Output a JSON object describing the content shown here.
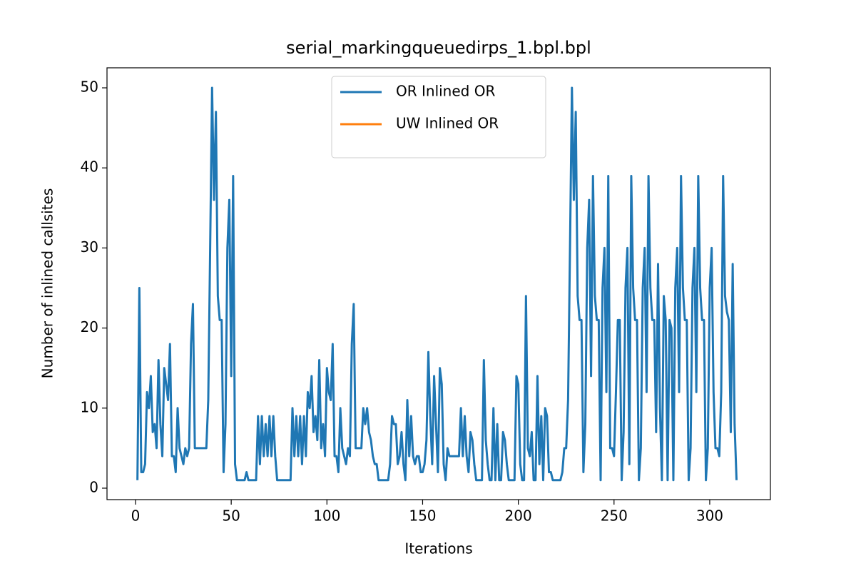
{
  "chart_data": {
    "type": "line",
    "title": "serial_markingqueuedirps_1.bpl.bpl",
    "xlabel": "Iterations",
    "ylabel": "Number of inlined callsites",
    "xlim": [
      -14.9,
      331.7
    ],
    "ylim": [
      -1.43,
      52.5
    ],
    "xticks": [
      0,
      50,
      100,
      150,
      200,
      250,
      300
    ],
    "yticks": [
      0,
      10,
      20,
      30,
      40,
      50
    ],
    "legend": "upper center",
    "series": [
      {
        "name": "OR Inlined OR",
        "color": "#1f77b4",
        "x": [
          1,
          2,
          3,
          4,
          5,
          6,
          7,
          8,
          9,
          10,
          11,
          12,
          13,
          14,
          15,
          16,
          17,
          18,
          19,
          20,
          21,
          22,
          23,
          24,
          25,
          26,
          27,
          28,
          29,
          30,
          31,
          32,
          33,
          34,
          35,
          36,
          37,
          38,
          39,
          40,
          41,
          42,
          43,
          44,
          45,
          46,
          47,
          48,
          49,
          50,
          51,
          52,
          53,
          54,
          55,
          56,
          57,
          58,
          59,
          60,
          61,
          62,
          63,
          64,
          65,
          66,
          67,
          68,
          69,
          70,
          71,
          72,
          73,
          74,
          75,
          76,
          77,
          78,
          79,
          80,
          81,
          82,
          83,
          84,
          85,
          86,
          87,
          88,
          89,
          90,
          91,
          92,
          93,
          94,
          95,
          96,
          97,
          98,
          99,
          100,
          101,
          102,
          103,
          104,
          105,
          106,
          107,
          108,
          109,
          110,
          111,
          112,
          113,
          114,
          115,
          116,
          117,
          118,
          119,
          120,
          121,
          122,
          123,
          124,
          125,
          126,
          127,
          128,
          129,
          130,
          131,
          132,
          133,
          134,
          135,
          136,
          137,
          138,
          139,
          140,
          141,
          142,
          143,
          144,
          145,
          146,
          147,
          148,
          149,
          150,
          151,
          152,
          153,
          154,
          155,
          156,
          157,
          158,
          159,
          160,
          161,
          162,
          163,
          164,
          165,
          166,
          167,
          168,
          169,
          170,
          171,
          172,
          173,
          174,
          175,
          176,
          177,
          178,
          179,
          180,
          181,
          182,
          183,
          184,
          185,
          186,
          187,
          188,
          189,
          190,
          191,
          192,
          193,
          194,
          195,
          196,
          197,
          198,
          199,
          200,
          201,
          202,
          203,
          204,
          205,
          206,
          207,
          208,
          209,
          210,
          211,
          212,
          213,
          214,
          215,
          216,
          217,
          218,
          219,
          220,
          221,
          222,
          223,
          224,
          225,
          226,
          227,
          228,
          229,
          230,
          231,
          232,
          233,
          234,
          235,
          236,
          237,
          238,
          239,
          240,
          241,
          242,
          243,
          244,
          245,
          246,
          247,
          248,
          249,
          250,
          251,
          252,
          253,
          254,
          255,
          256,
          257,
          258,
          259,
          260,
          261,
          262,
          263,
          264,
          265,
          266,
          267,
          268,
          269,
          270,
          271,
          272,
          273,
          274,
          275,
          276,
          277,
          278,
          279,
          280,
          281,
          282,
          283,
          284,
          285,
          286,
          287,
          288,
          289,
          290,
          291,
          292,
          293,
          294,
          295,
          296,
          297,
          298,
          299,
          300,
          301,
          302,
          303,
          304,
          305,
          306,
          307,
          308,
          309,
          310,
          311,
          312,
          313,
          314
        ],
        "values": [
          1,
          25,
          2,
          2,
          3,
          12,
          10,
          14,
          7,
          8,
          5,
          16,
          8,
          4,
          15,
          13,
          11,
          18,
          4,
          4,
          2,
          10,
          5,
          4,
          3,
          5,
          4,
          5,
          18,
          23,
          5,
          5,
          5,
          5,
          5,
          5,
          5,
          11,
          30,
          50,
          36,
          47,
          24,
          21,
          21,
          2,
          8,
          30,
          36,
          14,
          39,
          3,
          1,
          1,
          1,
          1,
          1,
          2,
          1,
          1,
          1,
          1,
          1,
          9,
          3,
          9,
          4,
          8,
          4,
          9,
          4,
          9,
          4,
          1,
          1,
          1,
          1,
          1,
          1,
          1,
          1,
          10,
          4,
          9,
          4,
          9,
          3,
          9,
          4,
          12,
          10,
          14,
          7,
          9,
          6,
          16,
          5,
          8,
          4,
          15,
          12,
          11,
          18,
          4,
          4,
          2,
          10,
          5,
          4,
          3,
          5,
          4,
          18,
          23,
          5,
          5,
          5,
          5,
          10,
          8,
          10,
          7,
          6,
          4,
          3,
          3,
          1,
          1,
          1,
          1,
          1,
          1,
          3,
          9,
          8,
          8,
          3,
          4,
          7,
          3,
          1,
          11,
          4,
          9,
          4,
          3,
          4,
          4,
          2,
          2,
          3,
          6,
          17,
          9,
          3,
          14,
          8,
          2,
          15,
          13,
          3,
          1,
          5,
          4,
          4,
          4,
          4,
          4,
          4,
          10,
          4,
          9,
          4,
          2,
          7,
          6,
          3,
          1,
          1,
          1,
          1,
          16,
          6,
          3,
          1,
          1,
          10,
          1,
          8,
          1,
          1,
          7,
          6,
          3,
          1,
          1,
          1,
          1,
          14,
          13,
          3,
          1,
          1,
          24,
          5,
          4,
          7,
          1,
          1,
          14,
          3,
          9,
          1,
          10,
          9,
          2,
          2,
          1,
          1,
          1,
          1,
          1,
          2,
          5,
          5,
          11,
          30,
          50,
          36,
          47,
          24,
          21,
          21,
          2,
          8,
          30,
          36,
          14,
          39,
          24,
          21,
          21,
          1,
          25,
          30,
          12,
          39,
          5,
          5,
          4,
          12,
          21,
          21,
          1,
          7,
          25,
          30,
          3,
          39,
          25,
          21,
          21,
          1,
          5,
          25,
          30,
          12,
          39,
          25,
          21,
          21,
          7,
          28,
          10,
          1,
          24,
          21,
          1,
          21,
          20,
          1,
          25,
          30,
          12,
          39,
          25,
          21,
          21,
          1,
          5,
          25,
          30,
          12,
          39,
          25,
          21,
          21,
          1,
          5,
          25,
          30,
          12,
          5,
          5,
          4,
          12,
          39,
          24,
          22,
          21,
          7,
          28,
          8,
          1
        ]
      },
      {
        "name": "UW Inlined OR",
        "color": "#ff7f0e",
        "x": [],
        "values": []
      }
    ]
  }
}
